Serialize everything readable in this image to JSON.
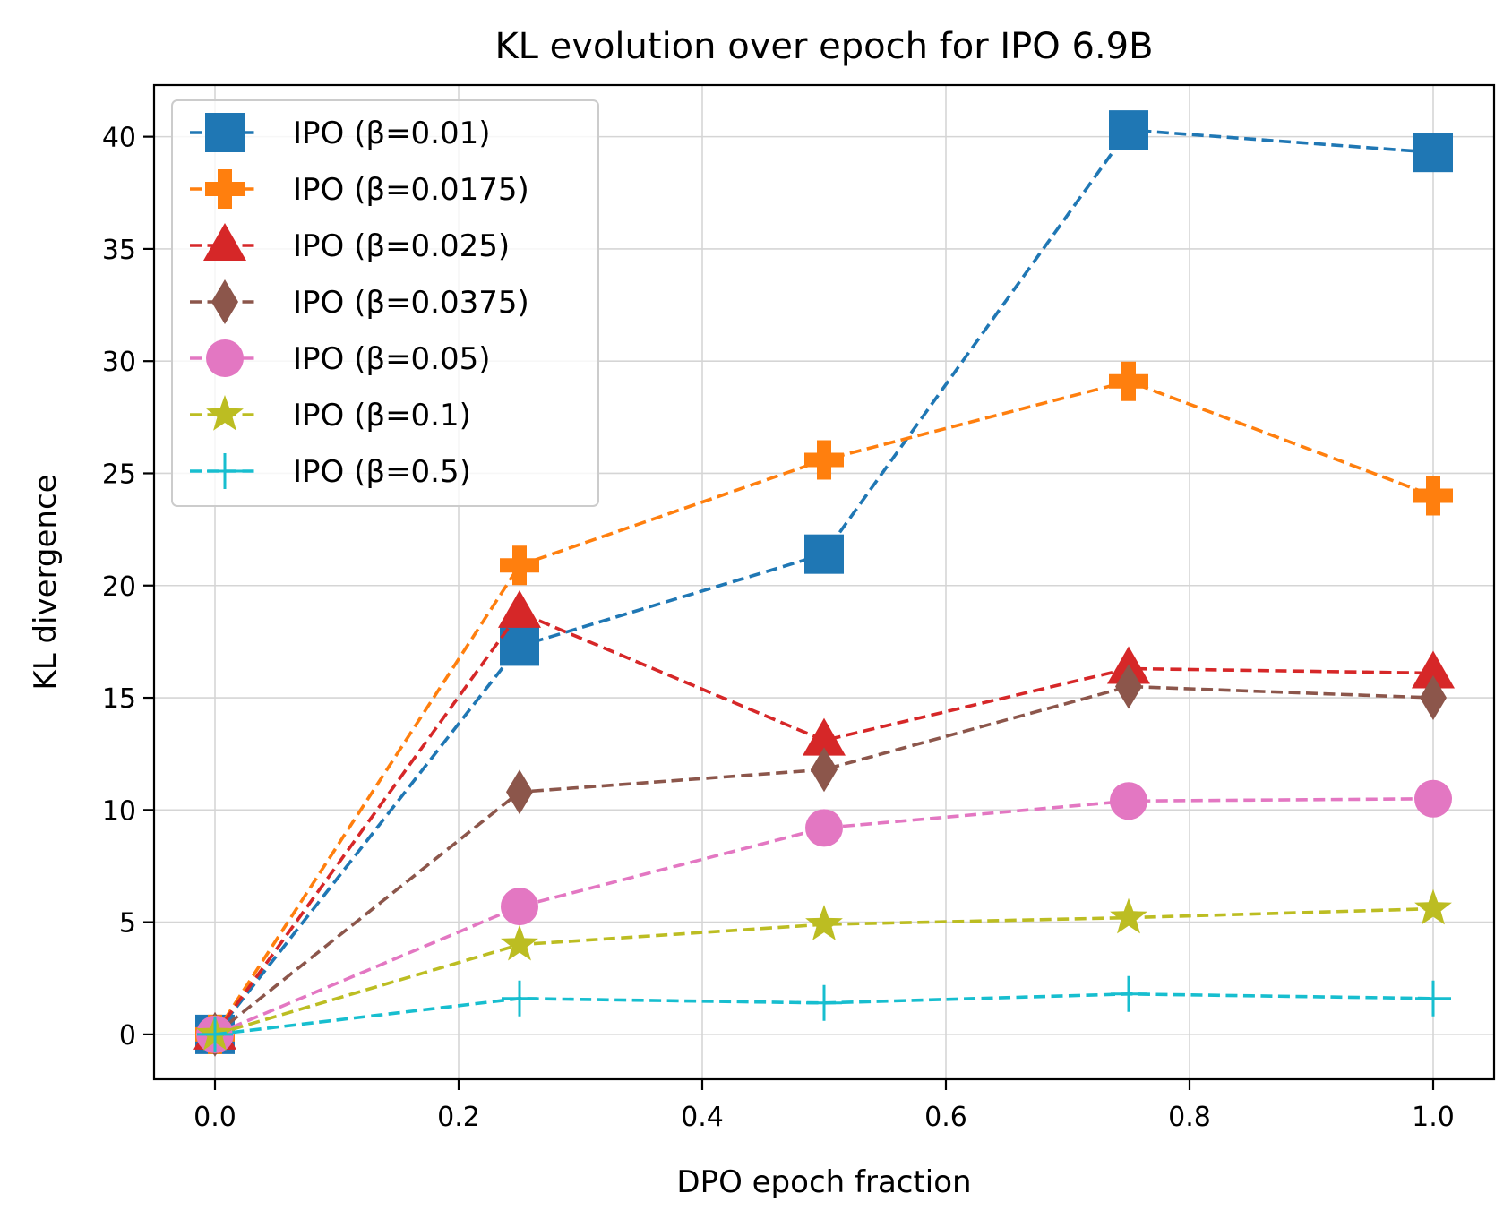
{
  "chart_data": {
    "type": "line",
    "title": "KL evolution over epoch for IPO 6.9B",
    "xlabel": "DPO epoch fraction",
    "ylabel": "KL divergence",
    "x": [
      0.0,
      0.25,
      0.5,
      0.75,
      1.0
    ],
    "xlim": [
      -0.05,
      1.05
    ],
    "ylim": [
      -2,
      42.3
    ],
    "x_ticks": [
      0.0,
      0.2,
      0.4,
      0.6,
      0.8,
      1.0
    ],
    "x_tick_labels": [
      "0.0",
      "0.2",
      "0.4",
      "0.6",
      "0.8",
      "1.0"
    ],
    "y_ticks": [
      0,
      5,
      10,
      15,
      20,
      25,
      30,
      35,
      40
    ],
    "y_tick_labels": [
      "0",
      "5",
      "10",
      "15",
      "20",
      "25",
      "30",
      "35",
      "40"
    ],
    "grid": true,
    "legend_position": "top-left",
    "series": [
      {
        "name": "IPO (β=0.01)",
        "color": "#1f77b4",
        "marker": "square",
        "values": [
          0.0,
          17.3,
          21.4,
          40.3,
          39.3
        ]
      },
      {
        "name": "IPO (β=0.0175)",
        "color": "#ff7f0e",
        "marker": "plus-filled",
        "values": [
          0.0,
          20.9,
          25.6,
          29.1,
          24.0
        ]
      },
      {
        "name": "IPO (β=0.025)",
        "color": "#d62728",
        "marker": "triangle",
        "values": [
          0.0,
          18.8,
          13.1,
          16.3,
          16.1
        ]
      },
      {
        "name": "IPO (β=0.0375)",
        "color": "#8c564b",
        "marker": "diamond",
        "values": [
          0.0,
          10.8,
          11.8,
          15.5,
          15.0
        ]
      },
      {
        "name": "IPO (β=0.05)",
        "color": "#e377c2",
        "marker": "circle",
        "values": [
          0.0,
          5.7,
          9.2,
          10.4,
          10.5
        ]
      },
      {
        "name": "IPO (β=0.1)",
        "color": "#bcbd22",
        "marker": "star",
        "values": [
          0.0,
          4.0,
          4.9,
          5.2,
          5.6
        ]
      },
      {
        "name": "IPO (β=0.5)",
        "color": "#17becf",
        "marker": "plus-thin",
        "values": [
          0.0,
          1.6,
          1.4,
          1.8,
          1.6
        ]
      }
    ]
  }
}
